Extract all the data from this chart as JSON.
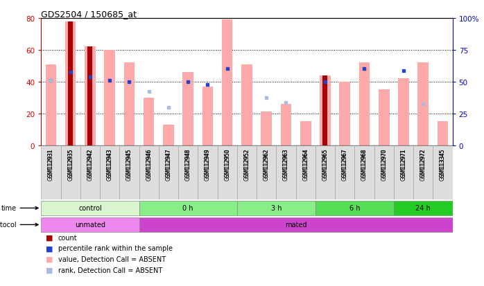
{
  "title": "GDS2504 / 150685_at",
  "samples": [
    "GSM112931",
    "GSM112935",
    "GSM112942",
    "GSM112943",
    "GSM112945",
    "GSM112946",
    "GSM112947",
    "GSM112948",
    "GSM112949",
    "GSM112950",
    "GSM112952",
    "GSM112962",
    "GSM112963",
    "GSM112964",
    "GSM112965",
    "GSM112967",
    "GSM112968",
    "GSM112970",
    "GSM112971",
    "GSM112972",
    "GSM113345"
  ],
  "pink_bar_values": [
    51,
    78,
    62,
    60,
    52,
    30,
    13,
    46,
    37,
    79,
    51,
    21,
    26,
    15,
    44,
    40,
    52,
    35,
    42,
    52,
    15
  ],
  "red_bar_values": [
    0,
    78,
    62,
    0,
    0,
    0,
    0,
    0,
    0,
    0,
    0,
    0,
    0,
    0,
    44,
    0,
    0,
    0,
    0,
    0,
    0
  ],
  "blue_dot_values": [
    41,
    46,
    43,
    41,
    40,
    0,
    0,
    40,
    38,
    48,
    0,
    0,
    0,
    0,
    40,
    0,
    48,
    0,
    47,
    0,
    0
  ],
  "light_blue_dot_values": [
    41,
    0,
    0,
    0,
    0,
    34,
    24,
    0,
    0,
    0,
    0,
    30,
    27,
    0,
    0,
    0,
    0,
    0,
    0,
    26,
    0
  ],
  "has_red": [
    false,
    true,
    true,
    false,
    false,
    false,
    false,
    false,
    false,
    false,
    false,
    false,
    false,
    false,
    true,
    false,
    false,
    false,
    false,
    false,
    false
  ],
  "has_blue": [
    true,
    true,
    true,
    true,
    true,
    false,
    false,
    true,
    true,
    true,
    false,
    false,
    false,
    false,
    true,
    false,
    true,
    false,
    true,
    false,
    false
  ],
  "has_light_blue": [
    true,
    false,
    false,
    false,
    false,
    true,
    true,
    false,
    false,
    false,
    false,
    true,
    true,
    false,
    false,
    false,
    false,
    false,
    false,
    true,
    false
  ],
  "time_groups": [
    {
      "label": "control",
      "start": 0,
      "end": 5
    },
    {
      "label": "0 h",
      "start": 5,
      "end": 10
    },
    {
      "label": "3 h",
      "start": 10,
      "end": 14
    },
    {
      "label": "6 h",
      "start": 14,
      "end": 18
    },
    {
      "label": "24 h",
      "start": 18,
      "end": 21
    }
  ],
  "time_colors": [
    "#d8f5d0",
    "#88ee88",
    "#88ee88",
    "#55dd55",
    "#22cc22"
  ],
  "protocol_groups": [
    {
      "label": "unmated",
      "start": 0,
      "end": 5
    },
    {
      "label": "mated",
      "start": 5,
      "end": 21
    }
  ],
  "protocol_colors": [
    "#ee88ee",
    "#cc44cc"
  ],
  "ylim_left": [
    0,
    80
  ],
  "ylim_right": [
    0,
    100
  ],
  "yticks_left": [
    0,
    20,
    40,
    60,
    80
  ],
  "yticks_right": [
    0,
    25,
    50,
    75,
    100
  ],
  "left_tick_color": "#cc0000",
  "right_tick_color": "#0000cc",
  "bar_width": 0.55,
  "pink_color": "#ffaaaa",
  "red_color": "#aa0000",
  "blue_color": "#2244cc",
  "light_blue_color": "#aabbdd",
  "bg_color": "#ffffff"
}
